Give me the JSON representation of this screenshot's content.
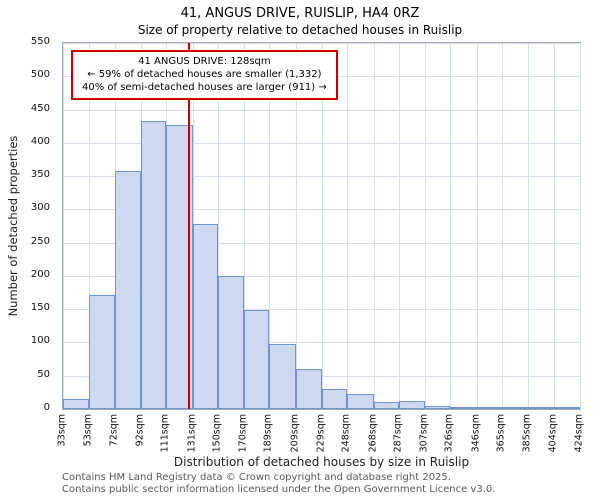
{
  "annotation": {
    "line1": "41 ANGUS DRIVE: 128sqm",
    "line2": "← 59% of detached houses are smaller (1,332)",
    "line3": "40% of semi-detached houses are larger (911) →",
    "border_color": "#cc0000"
  },
  "footer": {
    "line1": "Contains HM Land Registry data © Crown copyright and database right 2025.",
    "line2": "Contains public sector information licensed under the Open Government Licence v3.0."
  },
  "chart_data": {
    "type": "bar",
    "title": "41, ANGUS DRIVE, RUISLIP, HA4 0RZ",
    "subtitle": "Size of property relative to detached houses in Ruislip",
    "xlabel": "Distribution of detached houses by size in Ruislip",
    "ylabel": "Number of detached properties",
    "bin_edges_sqm": [
      33,
      53,
      72,
      92,
      111,
      131,
      150,
      170,
      189,
      209,
      229,
      248,
      268,
      287,
      307,
      326,
      346,
      365,
      385,
      404,
      424
    ],
    "tick_labels": [
      "33sqm",
      "53sqm",
      "72sqm",
      "92sqm",
      "111sqm",
      "131sqm",
      "150sqm",
      "170sqm",
      "189sqm",
      "209sqm",
      "229sqm",
      "248sqm",
      "268sqm",
      "287sqm",
      "307sqm",
      "326sqm",
      "346sqm",
      "365sqm",
      "385sqm",
      "404sqm",
      "424sqm"
    ],
    "values": [
      15,
      172,
      358,
      433,
      427,
      278,
      200,
      149,
      98,
      60,
      30,
      22,
      10,
      12,
      5,
      3,
      2,
      1,
      1,
      2
    ],
    "ylim": [
      0,
      550
    ],
    "ytick_step": 50,
    "grid": true,
    "legend": false,
    "marker_value_sqm": 128,
    "marker_color": "#cc0000",
    "bar_fill": "#ccd9f0",
    "bar_edge": "#7195ca",
    "grid_color": "#d7deed"
  }
}
